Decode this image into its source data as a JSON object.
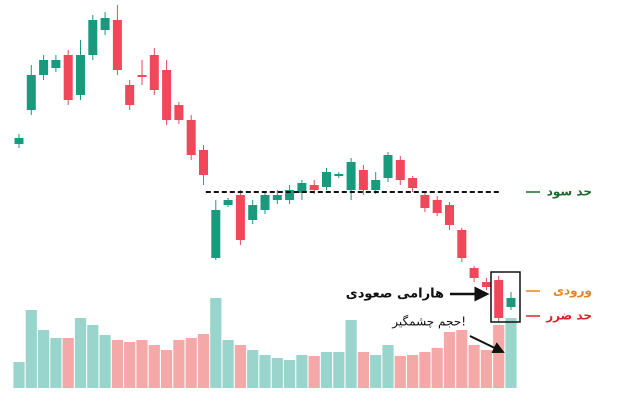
{
  "chart_data": {
    "type": "candlestick",
    "ylim": [
      0,
      400
    ],
    "volume_ylim": [
      0,
      100
    ],
    "up_color": "#1a9a7c",
    "down_color": "#f0475a",
    "volume_up_color": "#99d5cc",
    "volume_down_color": "#f4a8a8",
    "open": [
      256,
      290,
      325,
      332,
      345,
      305,
      345,
      370,
      380,
      315,
      325,
      345,
      330,
      295,
      280,
      250,
      142,
      195,
      205,
      180,
      190,
      200,
      200,
      207,
      215,
      213,
      224,
      210,
      230,
      210,
      222,
      240,
      222,
      205,
      200,
      195,
      170,
      132,
      118,
      120,
      93
    ],
    "high": [
      266,
      335,
      345,
      345,
      350,
      360,
      385,
      388,
      395,
      320,
      340,
      352,
      340,
      298,
      285,
      255,
      200,
      202,
      210,
      200,
      208,
      210,
      215,
      220,
      220,
      232,
      228,
      242,
      235,
      228,
      248,
      244,
      224,
      208,
      204,
      198,
      172,
      134,
      122,
      124,
      108
    ],
    "low": [
      252,
      285,
      320,
      328,
      295,
      300,
      340,
      365,
      325,
      290,
      315,
      305,
      275,
      276,
      240,
      215,
      140,
      193,
      155,
      176,
      186,
      196,
      196,
      200,
      206,
      210,
      222,
      200,
      205,
      206,
      218,
      215,
      208,
      188,
      184,
      170,
      138,
      118,
      110,
      78,
      90
    ],
    "close": [
      262,
      325,
      340,
      340,
      300,
      345,
      380,
      382,
      330,
      295,
      323,
      310,
      280,
      280,
      245,
      225,
      190,
      200,
      160,
      195,
      205,
      205,
      210,
      217,
      210,
      228,
      226,
      238,
      210,
      220,
      245,
      220,
      212,
      192,
      187,
      175,
      142,
      122,
      113,
      82,
      102
    ],
    "volume": [
      26,
      78,
      58,
      50,
      50,
      70,
      63,
      53,
      48,
      46,
      48,
      43,
      38,
      48,
      50,
      54,
      90,
      48,
      43,
      38,
      33,
      30,
      28,
      33,
      32,
      36,
      36,
      68,
      36,
      33,
      43,
      32,
      33,
      36,
      40,
      56,
      58,
      43,
      38,
      63,
      70
    ],
    "levels": [
      {
        "name": "حد سود",
        "value": 208,
        "color": "#1b6b2a",
        "dashed": true
      },
      {
        "name": "ورودی",
        "value": 109,
        "color": "#e8821e",
        "dashed": false
      },
      {
        "name": "حد ضرر",
        "value": 84,
        "color": "#d9262a",
        "dashed": false
      }
    ],
    "annotations": [
      "هارامی صعودی",
      "حجم چشمگیر!"
    ]
  }
}
